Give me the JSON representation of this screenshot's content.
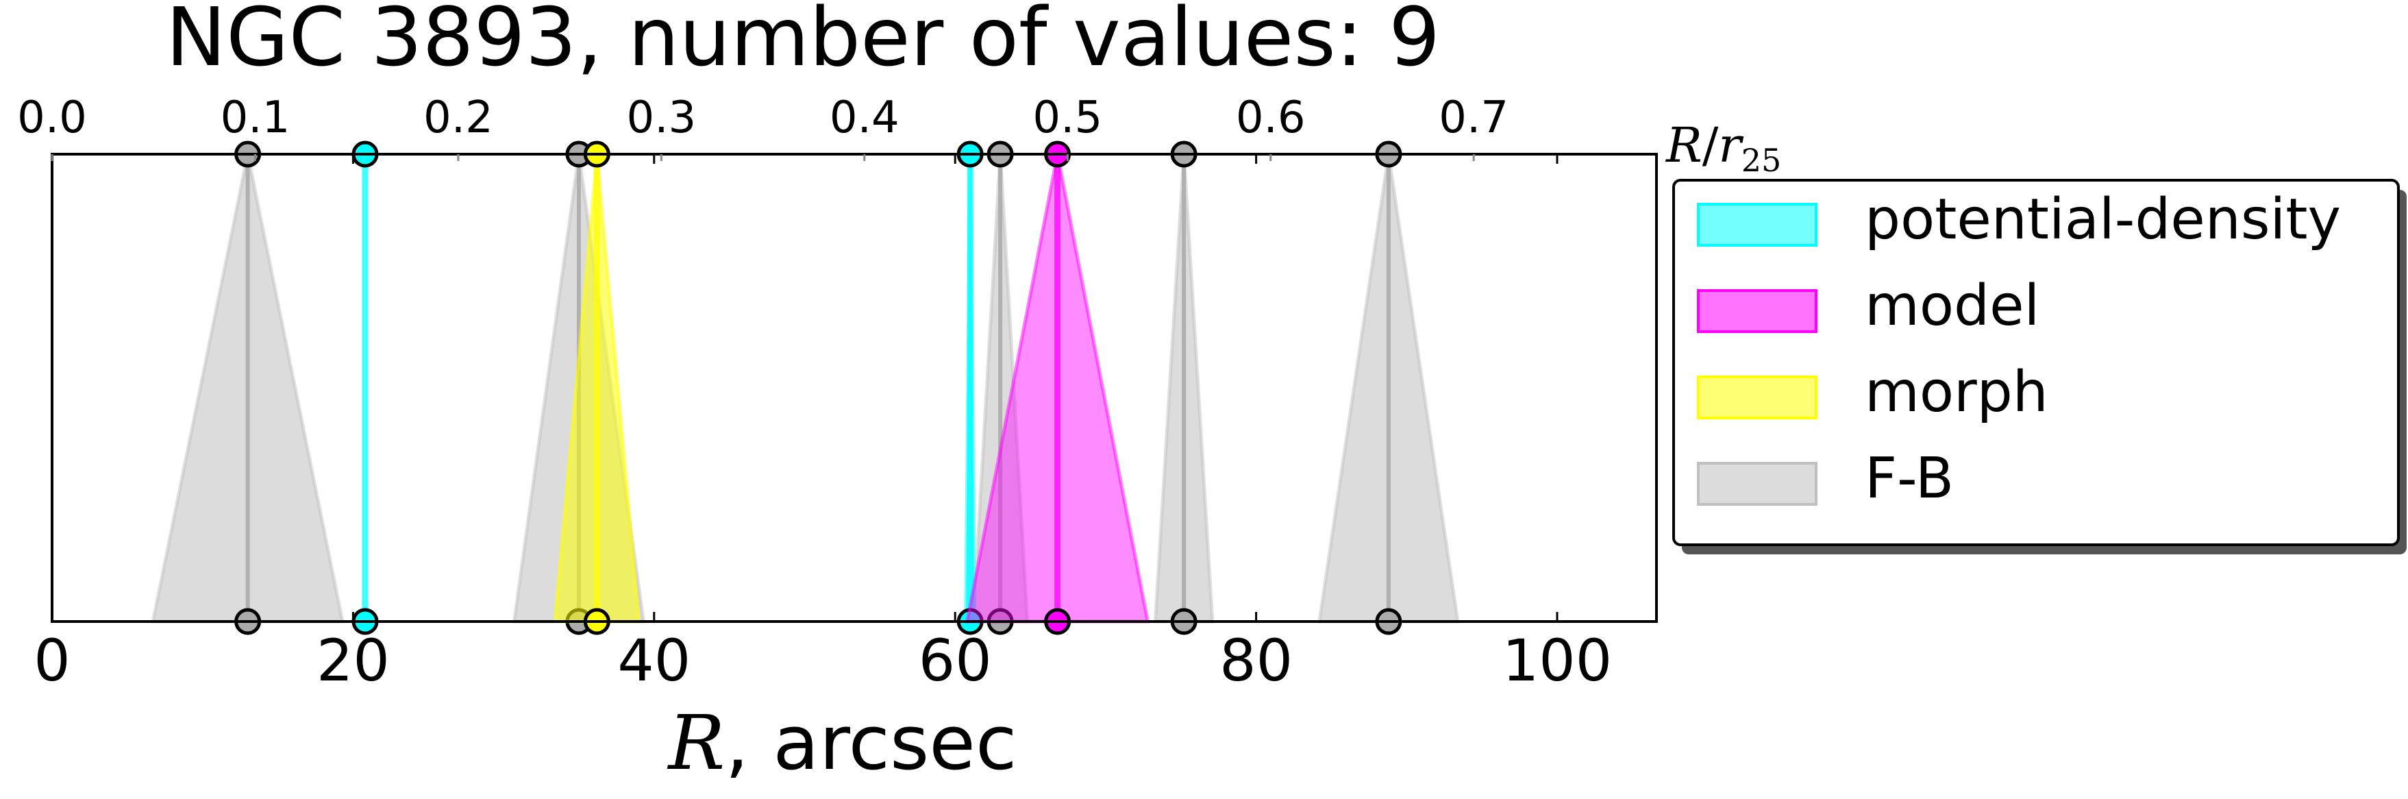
{
  "chart_data": {
    "type": "scatter",
    "title": "NGC 3893, number of values: 9",
    "xlabel_var": "R",
    "xlabel_rest": ", arcsec",
    "top_label": "R/r25",
    "top_label_parts": {
      "var": "R",
      "slash": "/",
      "sym": "r",
      "sub": "25"
    },
    "xlim": [
      0,
      106.6
    ],
    "x_ticks": [
      0,
      20,
      40,
      60,
      80,
      100
    ],
    "x_tick_labels": [
      "0",
      "20",
      "40",
      "60",
      "80",
      "100"
    ],
    "top_ticks": [
      0.0,
      0.1,
      0.2,
      0.3,
      0.4,
      0.5,
      0.6,
      0.7
    ],
    "top_tick_labels": [
      "0.0",
      "0.1",
      "0.2",
      "0.3",
      "0.4",
      "0.5",
      "0.6",
      "0.7"
    ],
    "top_axis_max": 0.79,
    "grid": false,
    "legend_position": "right",
    "colors": {
      "potential-density": "#00ffff",
      "model": "#ff00ff",
      "morph": "#ffff00",
      "F-B": "#c0c0c0"
    },
    "series": [
      {
        "name": "potential-density",
        "values": [
          {
            "R": 20.8,
            "err": 0.0
          },
          {
            "R": 61.0,
            "err": 0.3
          }
        ]
      },
      {
        "name": "model",
        "values": [
          {
            "R": 66.8,
            "err": 6.0
          }
        ]
      },
      {
        "name": "morph",
        "values": [
          {
            "R": 36.2,
            "err": 2.8
          }
        ]
      },
      {
        "name": "F-B",
        "values": [
          {
            "R": 13.0,
            "err": 6.3
          },
          {
            "R": 35.0,
            "err": 4.3
          },
          {
            "R": 63.0,
            "err": 1.8
          },
          {
            "R": 75.2,
            "err": 1.9
          },
          {
            "R": 88.8,
            "err": 4.6
          }
        ]
      }
    ]
  }
}
